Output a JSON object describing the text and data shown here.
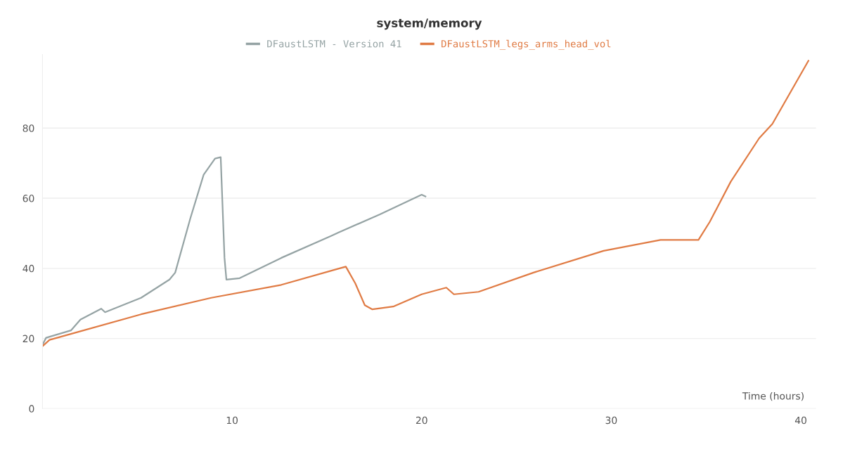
{
  "chart_data": {
    "type": "line",
    "title": "system/memory",
    "xlabel": "Time (hours)",
    "xlim": [
      0,
      40.8
    ],
    "xticks": [
      10,
      20,
      30,
      40
    ],
    "ylim": [
      0,
      101
    ],
    "yticks": [
      0,
      20,
      40,
      60,
      80
    ],
    "grid": "y",
    "legend": "top",
    "marker": "none",
    "line_style": "solid",
    "series": [
      {
        "name": "DFaustLSTM - Version 41",
        "color": "#95a3a4",
        "x": [
          0,
          0.19,
          1.5,
          2.0,
          3.1,
          3.3,
          5.2,
          6.7,
          7.0,
          7.8,
          8.5,
          9.1,
          9.4,
          9.6,
          9.7,
          10.4,
          12.6,
          15.2,
          15.6,
          17.8,
          20,
          20.2
        ],
        "values": [
          18.2,
          20.2,
          22.3,
          25.4,
          28.5,
          27.5,
          31.6,
          36.8,
          38.8,
          54.3,
          66.7,
          71.3,
          71.7,
          43,
          36.8,
          37.2,
          43,
          49.2,
          50.2,
          55.4,
          61,
          60.5
        ]
      },
      {
        "name": "DFaustLSTM_legs_arms_head_vol",
        "color": "#e07b44",
        "x": [
          0,
          0.37,
          1.5,
          5.2,
          8.9,
          12.6,
          15.6,
          16.0,
          16.5,
          17.0,
          17.4,
          18.5,
          20,
          21.3,
          21.7,
          23,
          25.9,
          29.6,
          32.6,
          34.6,
          35.2,
          36.3,
          37.8,
          38.5,
          40.4
        ],
        "values": [
          17.8,
          19.6,
          21.3,
          26.9,
          31.6,
          35.3,
          39.9,
          40.5,
          35.7,
          29.5,
          28.3,
          29.1,
          32.6,
          34.5,
          32.6,
          33.3,
          38.8,
          45.0,
          48.1,
          48.1,
          53.3,
          64.7,
          77.1,
          81.2,
          99.2
        ]
      }
    ]
  }
}
